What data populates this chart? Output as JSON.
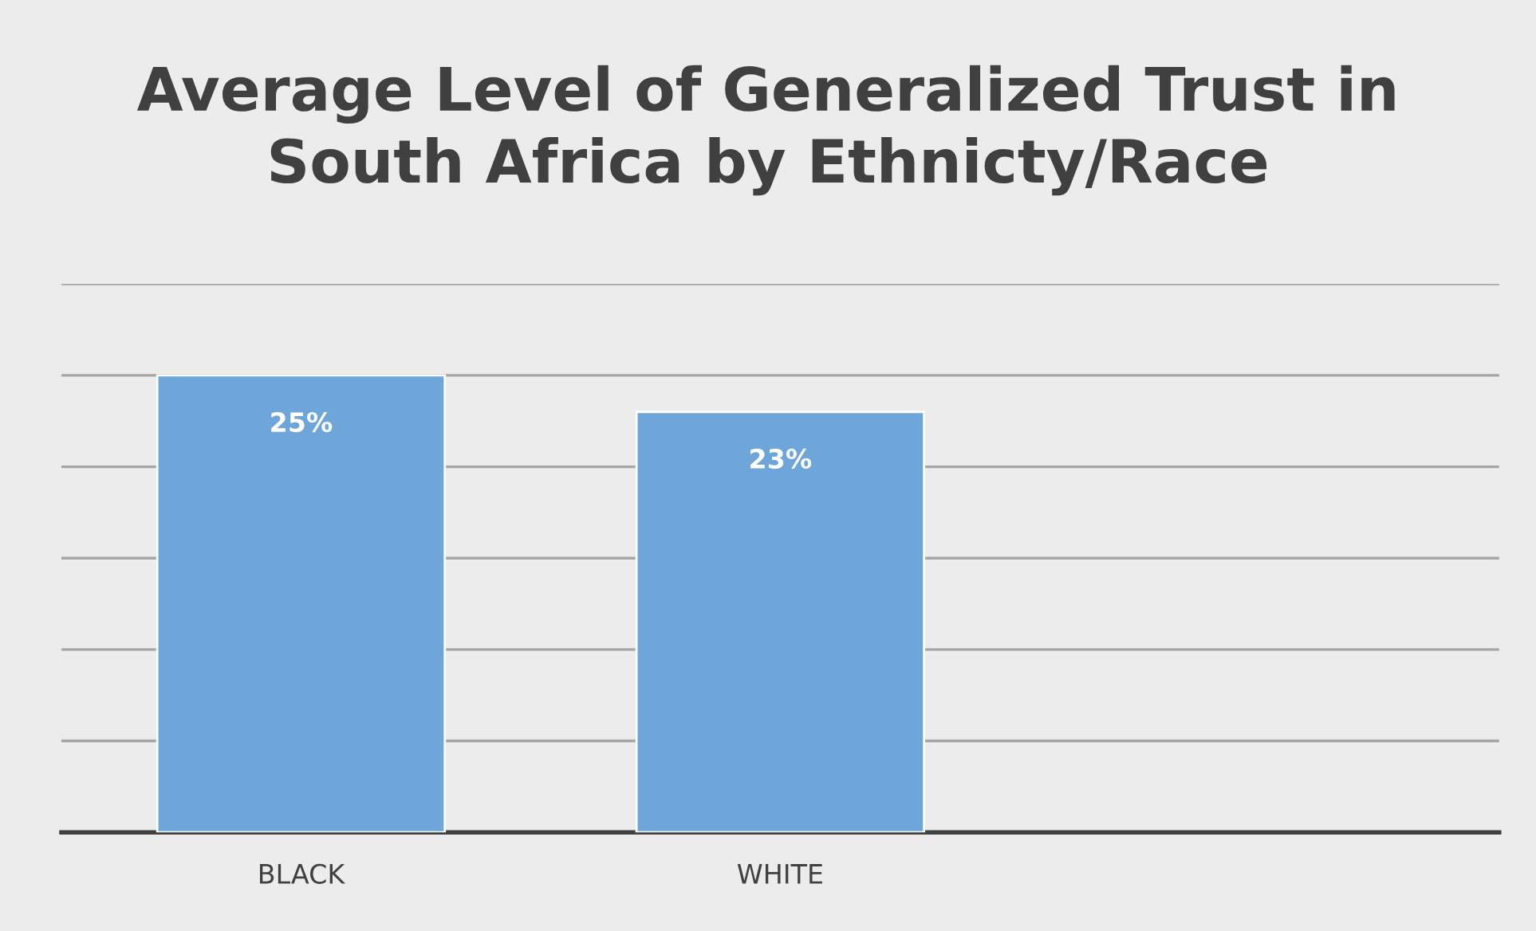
{
  "chart_data": {
    "type": "bar",
    "title": "Average Level of Generalized Trust in\nSouth Africa by Ethnicty/Race",
    "categories": [
      "BLACK",
      "WHITE",
      null
    ],
    "values": [
      25,
      23,
      null
    ],
    "value_labels": [
      "25%",
      "23%",
      null
    ],
    "color": "#6fa6da",
    "ylim": [
      0,
      30
    ],
    "yticks": [
      {
        "value": 0,
        "label": null
      },
      {
        "value": 5,
        "label": null
      },
      {
        "value": 10,
        "label": null
      },
      {
        "value": 15,
        "label": null
      },
      {
        "value": 20,
        "label": null
      },
      {
        "value": 25,
        "label": null
      },
      {
        "value": 30,
        "label": null
      }
    ],
    "tick_labels": "x",
    "grid": "y"
  }
}
